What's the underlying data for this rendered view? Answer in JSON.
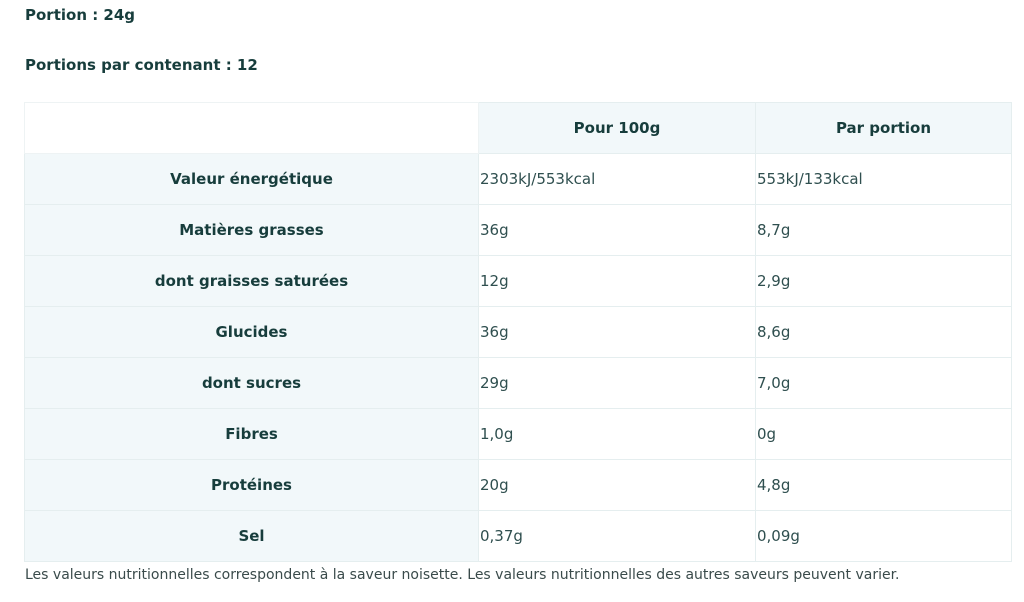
{
  "header": {
    "portion": "Portion : 24g",
    "portions_per_container": "Portions par contenant : 12"
  },
  "table": {
    "columns": [
      "",
      "Pour 100g",
      "Par portion"
    ],
    "rows": [
      {
        "label": "Valeur énergétique",
        "per_100g": "2303kJ/553kcal",
        "per_portion": "553kJ/133kcal"
      },
      {
        "label": "Matières grasses",
        "per_100g": "36g",
        "per_portion": "8,7g"
      },
      {
        "label": "dont graisses saturées",
        "per_100g": "12g",
        "per_portion": "2,9g"
      },
      {
        "label": "Glucides",
        "per_100g": "36g",
        "per_portion": "8,6g"
      },
      {
        "label": "dont sucres",
        "per_100g": "29g",
        "per_portion": "7,0g"
      },
      {
        "label": "Fibres",
        "per_100g": "1,0g",
        "per_portion": "0g"
      },
      {
        "label": "Protéines",
        "per_100g": "20g",
        "per_portion": "4,8g"
      },
      {
        "label": "Sel",
        "per_100g": "0,37g",
        "per_portion": "0,09g"
      }
    ]
  },
  "footnote": "Les valeurs nutritionnelles correspondent à la saveur noisette. Les valeurs nutritionnelles des autres saveurs peuvent varier."
}
